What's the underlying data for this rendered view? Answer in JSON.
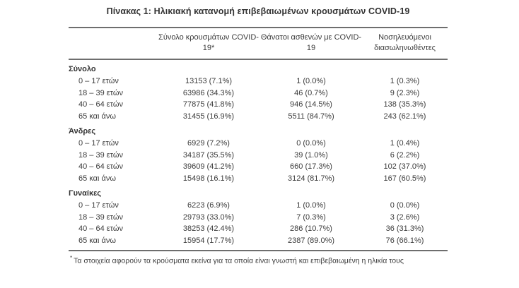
{
  "title": "Πίνακας 1: Ηλικιακή κατανομή επιβεβαιωμένων κρουσμάτων COVID-19",
  "table": {
    "columns": [
      "Σύνολο κρουσμάτων COVID-19*",
      "Θάνατοι ασθενών με COVID-19",
      "Νοσηλευόμενοι διασωληνωθέντες"
    ],
    "sections": [
      {
        "label": "Σύνολο",
        "rows": [
          [
            "0 – 17 ετών",
            "13153 (7.1%)",
            "1 (0.0%)",
            "1 (0.3%)"
          ],
          [
            "18 – 39 ετών",
            "63986 (34.3%)",
            "46 (0.7%)",
            "9 (2.3%)"
          ],
          [
            "40 – 64 ετών",
            "77875 (41.8%)",
            "946 (14.5%)",
            "138 (35.3%)"
          ],
          [
            "65 και άνω",
            "31455 (16.9%)",
            "5511 (84.7%)",
            "243 (62.1%)"
          ]
        ]
      },
      {
        "label": "Άνδρες",
        "rows": [
          [
            "0 – 17 ετών",
            "6929 (7.2%)",
            "0 (0.0%)",
            "1 (0.4%)"
          ],
          [
            "18 – 39 ετών",
            "34187 (35.5%)",
            "39 (1.0%)",
            "6 (2.2%)"
          ],
          [
            "40 – 64 ετών",
            "39609 (41.2%)",
            "660 (17.3%)",
            "102 (37.0%)"
          ],
          [
            "65 και άνω",
            "15498 (16.1%)",
            "3124 (81.7%)",
            "167 (60.5%)"
          ]
        ]
      },
      {
        "label": "Γυναίκες",
        "rows": [
          [
            "0 – 17 ετών",
            "6223 (6.9%)",
            "1 (0.0%)",
            "0 (0.0%)"
          ],
          [
            "18 – 39 ετών",
            "29793 (33.0%)",
            "7 (0.3%)",
            "3 (2.6%)"
          ],
          [
            "40 – 64 ετών",
            "38253 (42.4%)",
            "286 (10.7%)",
            "36 (31.3%)"
          ],
          [
            "65 και άνω",
            "15954 (17.7%)",
            "2387 (89.0%)",
            "76 (66.1%)"
          ]
        ]
      }
    ],
    "footnote_marker": "*",
    "footnote": "Τα στοιχεία αφορούν τα κρούσματα εκείνα για τα οποία είναι γνωστή και επιβεβαιωμένη η ηλικία τους"
  }
}
